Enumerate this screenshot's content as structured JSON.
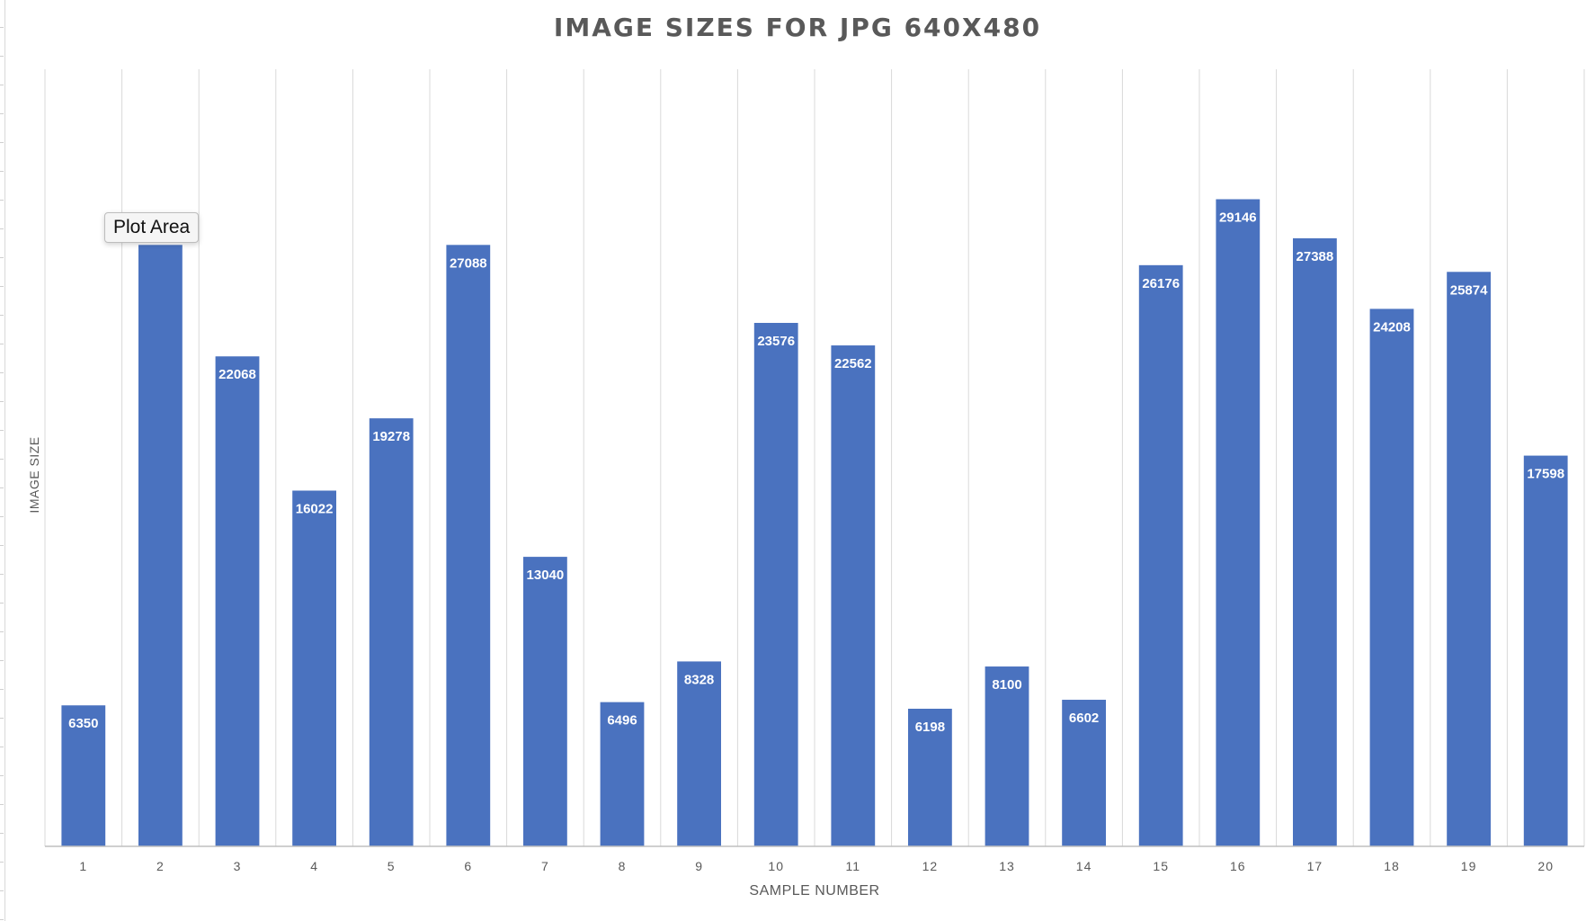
{
  "chart_data": {
    "type": "bar",
    "title": "IMAGE SIZES FOR JPG 640X480",
    "xlabel": "SAMPLE NUMBER",
    "ylabel": "IMAGE SIZE",
    "categories": [
      "1",
      "2",
      "3",
      "4",
      "5",
      "6",
      "7",
      "8",
      "9",
      "10",
      "11",
      "12",
      "13",
      "14",
      "15",
      "16",
      "17",
      "18",
      "19",
      "20"
    ],
    "values": [
      6350,
      27088,
      22068,
      16022,
      19278,
      27088,
      13040,
      6496,
      8328,
      23576,
      22562,
      6198,
      8100,
      6602,
      26176,
      29146,
      27388,
      24208,
      25874,
      17598
    ],
    "data_labels": [
      "6350",
      "",
      "22068",
      "16022",
      "19278",
      "27088",
      "13040",
      "6496",
      "8328",
      "23576",
      "22562",
      "6198",
      "8100",
      "6602",
      "26176",
      "29146",
      "27388",
      "24208",
      "25874",
      "17598"
    ],
    "ylim": [
      0,
      35000
    ],
    "bar_color": "#4a72bf",
    "gridlines": "vertical",
    "legend": "none"
  },
  "tooltip": {
    "text": "Plot Area"
  }
}
